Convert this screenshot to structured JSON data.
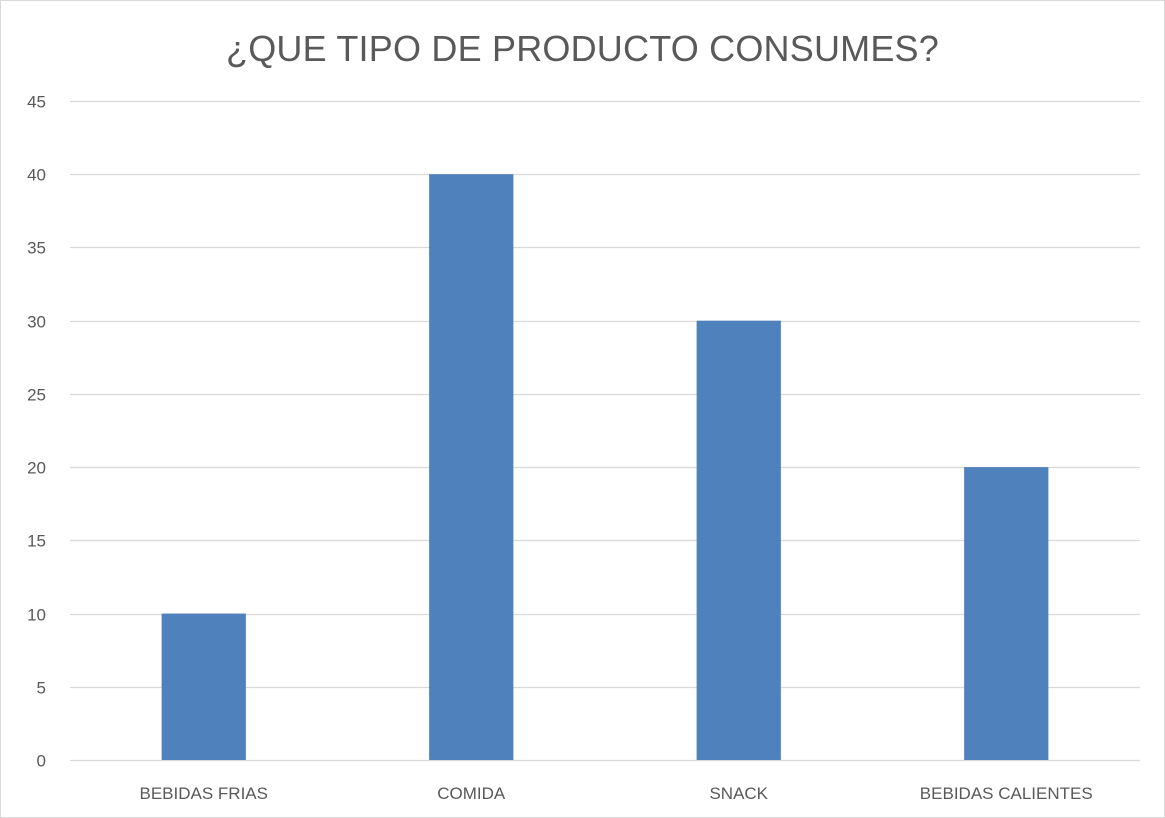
{
  "chart_data": {
    "type": "bar",
    "title": "¿QUE TIPO DE PRODUCTO CONSUMES?",
    "categories": [
      "BEBIDAS FRIAS",
      "COMIDA",
      "SNACK",
      "BEBIDAS CALIENTES"
    ],
    "values": [
      10,
      40,
      30,
      20
    ],
    "ylim": [
      0,
      45
    ],
    "yticks": [
      0,
      5,
      10,
      15,
      20,
      25,
      30,
      35,
      40,
      45
    ],
    "grid": true,
    "legend": "none",
    "colors": {
      "bar": "#4f81bd",
      "grid": "#d9d9d9",
      "text": "#595959"
    }
  }
}
